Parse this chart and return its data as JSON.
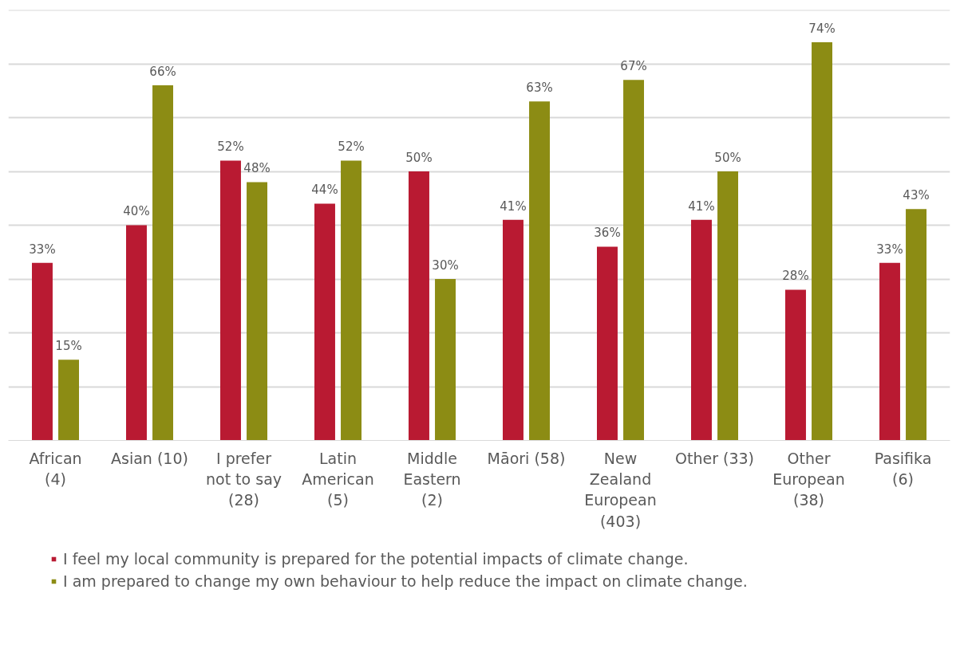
{
  "chart_data": {
    "type": "bar",
    "categories": [
      "African (4)",
      "Asian (10)",
      "I prefer not to say (28)",
      "Latin American (5)",
      "Middle Eastern (2)",
      "Māori (58)",
      "New Zealand European (403)",
      "Other (33)",
      "Other European (38)",
      "Pasifika (6)"
    ],
    "series": [
      {
        "name": "I feel my local community is prepared for the potential impacts of climate change.",
        "color": "#b91a32",
        "values": [
          33,
          40,
          52,
          44,
          50,
          41,
          36,
          41,
          28,
          33
        ],
        "value_labels": [
          "33%",
          "40%",
          "52%",
          "44%",
          "50%",
          "41%",
          "36%",
          "41%",
          "28%",
          "33%"
        ]
      },
      {
        "name": "I am prepared to change my own behaviour to help reduce the impact on climate change.",
        "color": "#8c8c14",
        "values": [
          15,
          66,
          48,
          52,
          30,
          63,
          67,
          50,
          74,
          43
        ],
        "value_labels": [
          "15%",
          "66%",
          "48%",
          "52%",
          "30%",
          "63%",
          "67%",
          "50%",
          "74%",
          "43%"
        ]
      }
    ],
    "ylim": [
      0,
      80
    ],
    "yticks": [
      {
        "value": 0,
        "label": null
      },
      {
        "value": 10,
        "label": null
      },
      {
        "value": 20,
        "label": null
      },
      {
        "value": 30,
        "label": null
      },
      {
        "value": 40,
        "label": null
      },
      {
        "value": 50,
        "label": null
      },
      {
        "value": 60,
        "label": null
      },
      {
        "value": 70,
        "label": null
      },
      {
        "value": 80,
        "label": null
      }
    ],
    "grid": "y",
    "legend": "bottom",
    "tick_labels": "x"
  }
}
